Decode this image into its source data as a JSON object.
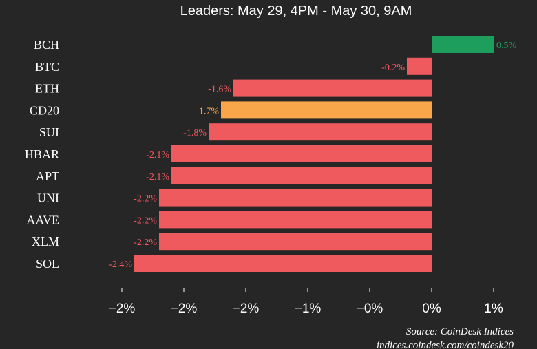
{
  "chart_data": {
    "type": "bar",
    "orientation": "horizontal",
    "title": "Leaders: May 29, 4PM - May 30, 9AM",
    "categories": [
      "BCH",
      "BTC",
      "ETH",
      "CD20",
      "SUI",
      "HBAR",
      "APT",
      "UNI",
      "AAVE",
      "XLM",
      "SOL"
    ],
    "values": [
      0.5,
      -0.2,
      -1.6,
      -1.7,
      -1.8,
      -2.1,
      -2.1,
      -2.2,
      -2.2,
      -2.2,
      -2.4
    ],
    "value_labels": [
      "0.5%",
      "-0.2%",
      "-1.6%",
      "-1.7%",
      "-1.8%",
      "-2.1%",
      "-2.1%",
      "-2.2%",
      "-2.2%",
      "-2.2%",
      "-2.4%"
    ],
    "bar_colors": [
      "#1d9e5c",
      "#ef5a5f",
      "#ef5a5f",
      "#f9a64a",
      "#ef5a5f",
      "#ef5a5f",
      "#ef5a5f",
      "#ef5a5f",
      "#ef5a5f",
      "#ef5a5f",
      "#ef5a5f"
    ],
    "label_colors": [
      "#1d9e5c",
      "#ef5a5f",
      "#ef5a5f",
      "#f9a64a",
      "#ef5a5f",
      "#ef5a5f",
      "#ef5a5f",
      "#ef5a5f",
      "#ef5a5f",
      "#ef5a5f",
      "#ef5a5f"
    ],
    "x_ticks": [
      {
        "value": -2.5,
        "label": "−2%"
      },
      {
        "value": -2.0,
        "label": "−2%"
      },
      {
        "value": -1.5,
        "label": "−2%"
      },
      {
        "value": -1.0,
        "label": "−1%"
      },
      {
        "value": -0.5,
        "label": "−0%"
      },
      {
        "value": 0.0,
        "label": "0%"
      },
      {
        "value": 0.5,
        "label": "1%"
      }
    ],
    "xlim": [
      -2.75,
      0.75
    ],
    "grid": false,
    "legend": "none"
  },
  "source_line1": "Source: CoinDesk Indices",
  "source_line2": "indices.coindesk.com/coindesk20",
  "colors": {
    "background": "#262626",
    "text": "#ffffff",
    "negative": "#ef5a5f",
    "positive": "#1d9e5c",
    "highlight": "#f9a64a"
  }
}
